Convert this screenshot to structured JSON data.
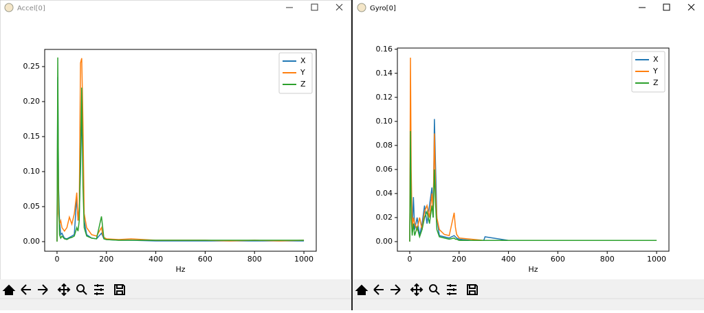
{
  "windows": [
    {
      "title": "Accel[0]"
    },
    {
      "title": "Gyro[0]"
    }
  ],
  "chart_data": [
    {
      "type": "line",
      "xlabel": "Hz",
      "x": [
        0,
        3,
        6,
        10,
        15,
        20,
        30,
        40,
        50,
        60,
        70,
        80,
        85,
        90,
        95,
        100,
        105,
        110,
        120,
        140,
        160,
        180,
        185,
        190,
        200,
        250,
        300,
        400,
        500,
        600,
        700,
        800,
        900,
        1000
      ],
      "series": [
        {
          "name": "X",
          "color": "#1f77b4",
          "values": [
            0,
            0.235,
            0.08,
            0.03,
            0.01,
            0.012,
            0.005,
            0.004,
            0.006,
            0.008,
            0.01,
            0.065,
            0.03,
            0.04,
            0.1,
            0.18,
            0.12,
            0.03,
            0.01,
            0.005,
            0.004,
            0.012,
            0.008,
            0.004,
            0.003,
            0.002,
            0.002,
            0.001,
            0.001,
            0.001,
            0.001,
            0.001,
            0.001,
            0.001
          ]
        },
        {
          "name": "Y",
          "color": "#ff7f0e",
          "values": [
            0,
            0.2,
            0.04,
            0.025,
            0.03,
            0.02,
            0.015,
            0.02,
            0.035,
            0.025,
            0.04,
            0.07,
            0.03,
            0.05,
            0.255,
            0.262,
            0.17,
            0.04,
            0.02,
            0.01,
            0.008,
            0.02,
            0.01,
            0.006,
            0.004,
            0.003,
            0.004,
            0.002,
            0.002,
            0.002,
            0.001,
            0.002,
            0.001,
            0.002
          ]
        },
        {
          "name": "Z",
          "color": "#2ca02c",
          "values": [
            0,
            0.263,
            0.075,
            0.01,
            0.005,
            0.008,
            0.004,
            0.003,
            0.005,
            0.006,
            0.008,
            0.02,
            0.015,
            0.03,
            0.12,
            0.22,
            0.08,
            0.02,
            0.008,
            0.005,
            0.004,
            0.036,
            0.02,
            0.004,
            0.003,
            0.002,
            0.002,
            0.002,
            0.002,
            0.002,
            0.002,
            0.002,
            0.002,
            0.002
          ]
        }
      ],
      "xlim": [
        -50,
        1050
      ],
      "xticks": [
        0,
        200,
        400,
        600,
        800,
        1000
      ],
      "ylim": [
        -0.0137,
        0.2745
      ],
      "yticks": [
        {
          "value": 0,
          "label": "0.00"
        },
        0.05,
        {
          "value": 0.1,
          "label": "0.10"
        },
        0.15,
        {
          "value": 0.2,
          "label": "0.20"
        },
        0.25
      ],
      "legend": "upper right",
      "grid": false
    },
    {
      "type": "line",
      "xlabel": "Hz",
      "x": [
        0,
        3,
        6,
        10,
        15,
        20,
        30,
        40,
        50,
        60,
        70,
        80,
        90,
        95,
        100,
        105,
        110,
        120,
        140,
        160,
        180,
        185,
        190,
        200,
        250,
        300,
        305,
        400,
        500,
        600,
        700,
        800,
        900,
        1000
      ],
      "series": [
        {
          "name": "X",
          "color": "#1f77b4",
          "values": [
            0,
            0.09,
            0.03,
            0.01,
            0.037,
            0.01,
            0.02,
            0.005,
            0.015,
            0.03,
            0.015,
            0.03,
            0.045,
            0.02,
            0.102,
            0.06,
            0.02,
            0.005,
            0.004,
            0.003,
            0.005,
            0.004,
            0.003,
            0.002,
            0.001,
            0.001,
            0.004,
            0.001,
            0.001,
            0.001,
            0.001,
            0.001,
            0.001,
            0.001
          ]
        },
        {
          "name": "Y",
          "color": "#ff7f0e",
          "values": [
            0,
            0.153,
            0.06,
            0.01,
            0.02,
            0.015,
            0.01,
            0.02,
            0.01,
            0.025,
            0.03,
            0.02,
            0.04,
            0.025,
            0.09,
            0.04,
            0.02,
            0.01,
            0.006,
            0.005,
            0.024,
            0.012,
            0.006,
            0.003,
            0.002,
            0.001,
            0.001,
            0.001,
            0.001,
            0.001,
            0.001,
            0.001,
            0.001,
            0.001
          ]
        },
        {
          "name": "Z",
          "color": "#2ca02c",
          "values": [
            0,
            0.092,
            0.02,
            0.005,
            0.015,
            0.005,
            0.012,
            0.004,
            0.01,
            0.02,
            0.025,
            0.015,
            0.03,
            0.02,
            0.06,
            0.03,
            0.01,
            0.004,
            0.003,
            0.002,
            0.003,
            0.002,
            0.002,
            0.001,
            0.001,
            0.001,
            0.001,
            0.001,
            0.001,
            0.001,
            0.001,
            0.001,
            0.001,
            0.001
          ]
        }
      ],
      "xlim": [
        -50,
        1050
      ],
      "xticks": [
        0,
        200,
        400,
        600,
        800,
        1000
      ],
      "ylim": [
        -0.008,
        0.161
      ],
      "yticks": [
        {
          "value": 0,
          "label": "0.00"
        },
        0.02,
        0.04,
        0.06,
        0.08,
        {
          "value": 0.1,
          "label": "0.10"
        },
        0.12,
        0.14,
        0.16
      ],
      "legend": "upper right",
      "grid": false
    }
  ]
}
